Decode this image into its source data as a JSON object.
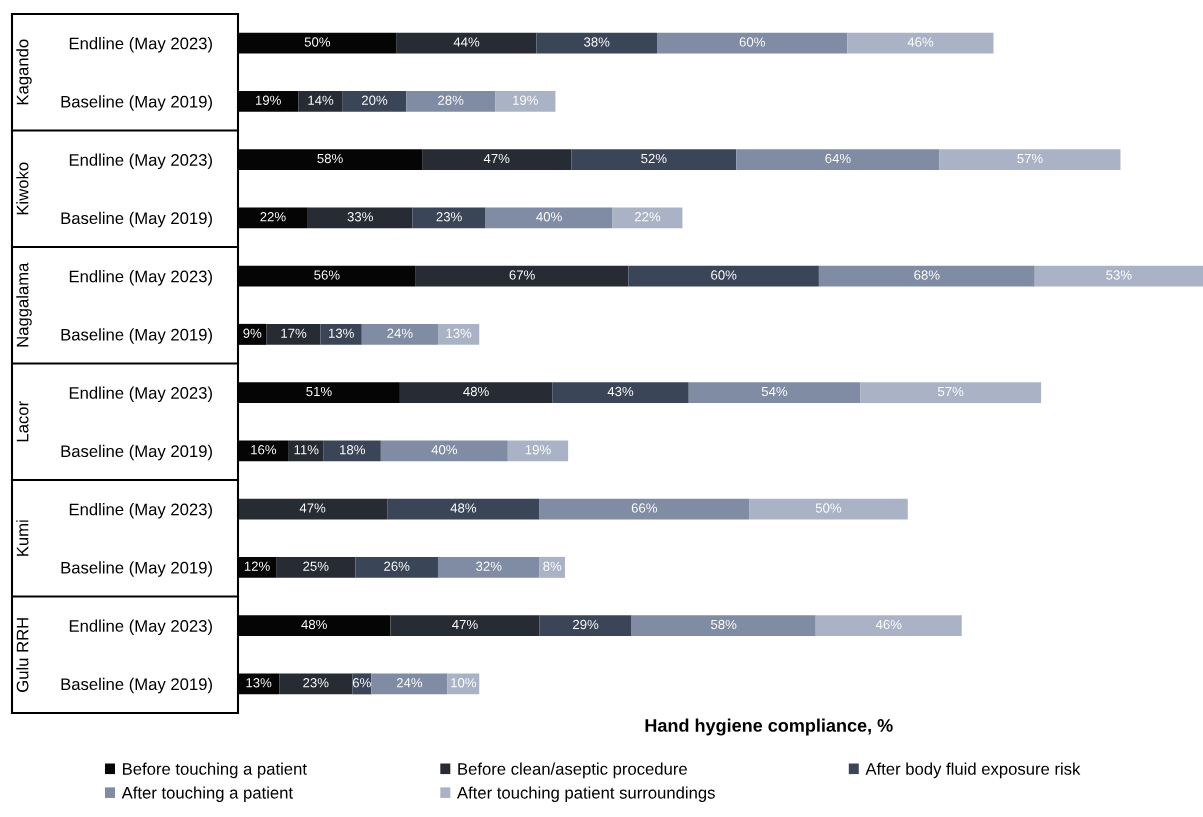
{
  "chart_data": {
    "type": "bar",
    "orientation": "horizontal",
    "stacked": true,
    "tick_labels": "y",
    "grid": false,
    "legend": "bottom",
    "xlabel": "Hand hygiene compliance, %",
    "categories": [
      "Endline (May 2023)",
      "Baseline (May 2019)",
      "Endline (May 2023)",
      "Baseline (May 2019)",
      "Endline (May 2023)",
      "Baseline (May 2019)",
      "Endline (May 2023)",
      "Baseline (May 2019)",
      "Endline (May 2023)",
      "Baseline (May 2019)",
      "Endline (May 2023)",
      "Baseline (May 2019)"
    ],
    "annotations": [
      "Kagando",
      "Kiwoko",
      "Naggalama",
      "Lacor",
      "Kumi",
      "Gulu RRH"
    ],
    "series": [
      {
        "name": "Before touching a patient",
        "color": "#050505",
        "values": [
          50,
          19,
          58,
          22,
          56,
          9,
          51,
          16,
          null,
          12,
          48,
          13
        ],
        "value_labels": [
          "50%",
          "19%",
          "58%",
          "22%",
          "56%",
          "9%",
          "51%",
          "16%",
          null,
          "12%",
          "48%",
          "13%"
        ]
      },
      {
        "name": "Before clean/aseptic procedure",
        "color": "#272b33",
        "values": [
          44,
          14,
          47,
          33,
          67,
          17,
          48,
          11,
          47,
          25,
          47,
          23
        ],
        "value_labels": [
          "44%",
          "14%",
          "47%",
          "33%",
          "67%",
          "17%",
          "48%",
          "11%",
          "47%",
          "25%",
          "47%",
          "23%"
        ]
      },
      {
        "name": "After body fluid exposure risk",
        "color": "#3b4558",
        "values": [
          38,
          20,
          52,
          23,
          60,
          13,
          43,
          18,
          48,
          26,
          29,
          6
        ],
        "value_labels": [
          "38%",
          "20%",
          "52%",
          "23%",
          "60%",
          "13%",
          "43%",
          "18%",
          "48%",
          "26%",
          "29%",
          "6%"
        ]
      },
      {
        "name": "After touching a patient",
        "color": "#7f8ca3",
        "values": [
          60,
          28,
          64,
          40,
          68,
          24,
          54,
          40,
          66,
          32,
          58,
          24
        ],
        "value_labels": [
          "60%",
          "28%",
          "64%",
          "40%",
          "68%",
          "24%",
          "54%",
          "40%",
          "66%",
          "32%",
          "58%",
          "24%"
        ]
      },
      {
        "name": "After touching patient surroundings",
        "color": "#aab3c6",
        "values": [
          46,
          19,
          57,
          22,
          53,
          13,
          57,
          19,
          50,
          8,
          46,
          10
        ],
        "value_labels": [
          "46%",
          "19%",
          "57%",
          "22%",
          "53%",
          "13%",
          "57%",
          "19%",
          "50%",
          "8%",
          "46%",
          "10%"
        ]
      }
    ]
  }
}
